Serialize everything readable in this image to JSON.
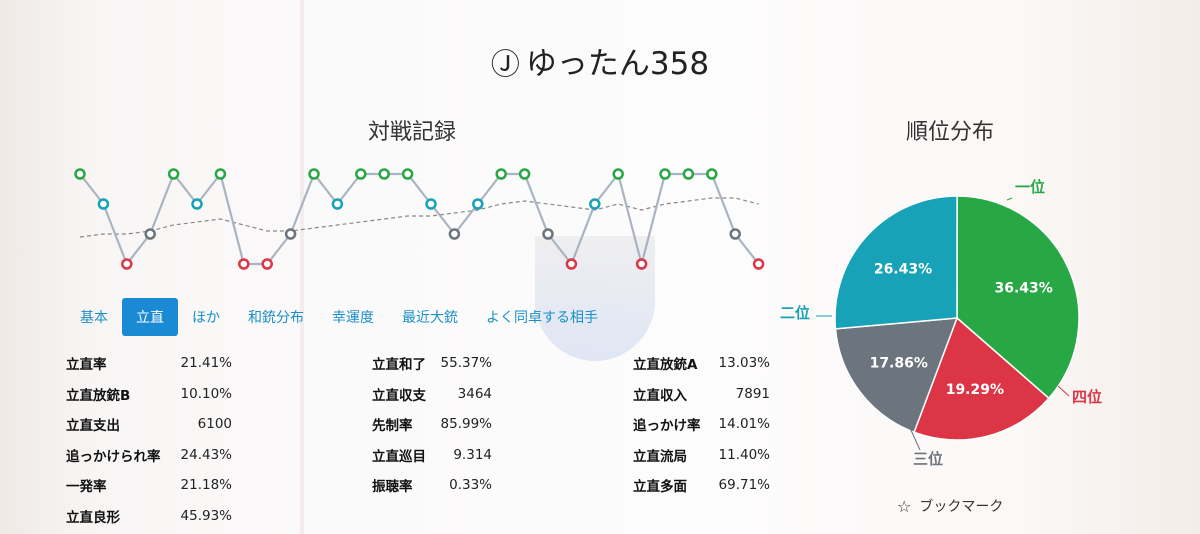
{
  "header": {
    "badge": "Ⓙ",
    "player_name": "ゆったん358"
  },
  "sections": {
    "record_title": "対戦記録",
    "rank_title": "順位分布"
  },
  "tabs": [
    {
      "label": "基本",
      "active": false
    },
    {
      "label": "立直",
      "active": true
    },
    {
      "label": "ほか",
      "active": false
    },
    {
      "label": "和銃分布",
      "active": false
    },
    {
      "label": "幸運度",
      "active": false
    },
    {
      "label": "最近大銃",
      "active": false
    },
    {
      "label": "よく同卓する相手",
      "active": false
    }
  ],
  "stats": {
    "col1": [
      {
        "label": "立直率",
        "value": "21.41%"
      },
      {
        "label": "立直放銃B",
        "value": "10.10%"
      },
      {
        "label": "立直支出",
        "value": "6100"
      },
      {
        "label": "追っかけられ率",
        "value": "24.43%"
      },
      {
        "label": "一発率",
        "value": "21.18%"
      },
      {
        "label": "立直良形",
        "value": "45.93%"
      }
    ],
    "col2": [
      {
        "label": "立直和了",
        "value": "55.37%"
      },
      {
        "label": "立直収支",
        "value": "3464"
      },
      {
        "label": "先制率",
        "value": "85.99%"
      },
      {
        "label": "立直巡目",
        "value": "9.314"
      },
      {
        "label": "振聴率",
        "value": "0.33%"
      }
    ],
    "col3": [
      {
        "label": "立直放銃A",
        "value": "13.03%"
      },
      {
        "label": "立直収入",
        "value": "7891"
      },
      {
        "label": "追っかけ率",
        "value": "14.01%"
      },
      {
        "label": "立直流局",
        "value": "11.40%"
      },
      {
        "label": "立直多面",
        "value": "69.71%"
      }
    ]
  },
  "trend": {
    "ranks": [
      1,
      2,
      4,
      3,
      1,
      2,
      1,
      4,
      4,
      3,
      1,
      2,
      1,
      1,
      1,
      2,
      3,
      2,
      1,
      1,
      3,
      4,
      2,
      1,
      4,
      1,
      1,
      1,
      3,
      4
    ],
    "avg": [
      3.1,
      3.0,
      3.0,
      2.9,
      2.7,
      2.6,
      2.5,
      2.7,
      2.9,
      2.9,
      2.8,
      2.7,
      2.6,
      2.5,
      2.4,
      2.4,
      2.3,
      2.2,
      2.0,
      1.9,
      2.0,
      2.1,
      2.2,
      2.0,
      2.2,
      2.0,
      1.9,
      1.8,
      1.8,
      2.0
    ],
    "colors": {
      "1": "#28a745",
      "2": "#17a2b8",
      "3": "#6c757d",
      "4": "#dc3545"
    },
    "line_color": "#aab4c0",
    "avg_color": "#888888"
  },
  "rank_distribution": [
    {
      "label": "一位",
      "pct": 36.43,
      "text": "36.43%",
      "color": "#28a745"
    },
    {
      "label": "四位",
      "pct": 19.29,
      "text": "19.29%",
      "color": "#dc3545"
    },
    {
      "label": "三位",
      "pct": 17.86,
      "text": "17.86%",
      "color": "#6c757d"
    },
    {
      "label": "二位",
      "pct": 26.43,
      "text": "26.43%",
      "color": "#17a2b8"
    }
  ],
  "bookmark": {
    "icon": "☆",
    "label": "ブックマーク"
  }
}
